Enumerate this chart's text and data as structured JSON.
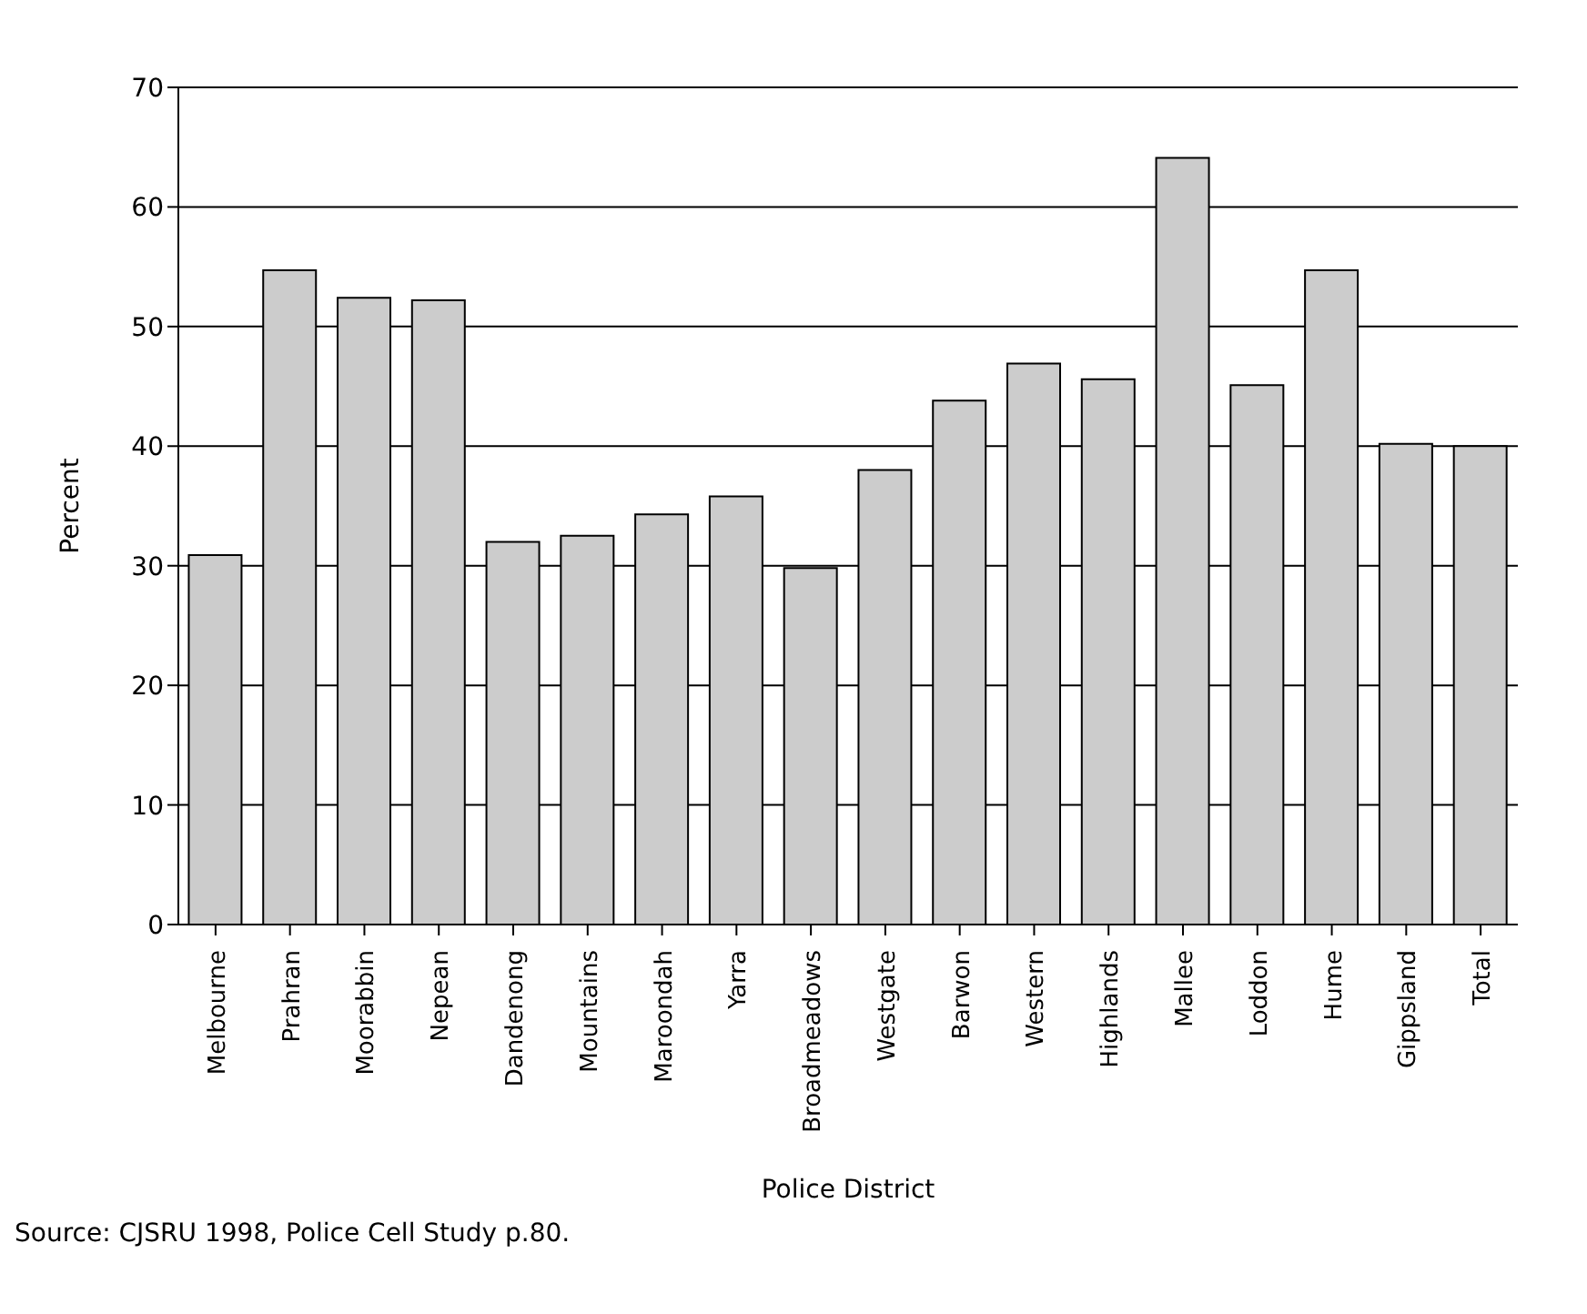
{
  "chart_data": {
    "type": "bar",
    "xlabel": "Police District",
    "ylabel": "Percent",
    "categories": [
      "Melbourne",
      "Prahran",
      "Moorabbin",
      "Nepean",
      "Dandenong",
      "Mountains",
      "Maroondah",
      "Yarra",
      "Broadmeadows",
      "Westgate",
      "Barwon",
      "Western",
      "Highlands",
      "Mallee",
      "Loddon",
      "Hume",
      "Gippsland",
      "Total"
    ],
    "values": [
      30.9,
      54.7,
      52.4,
      52.2,
      32.0,
      32.5,
      34.3,
      35.8,
      29.8,
      38.0,
      43.8,
      46.9,
      45.6,
      64.1,
      45.1,
      54.7,
      40.2,
      40.0
    ],
    "color": "#cccccc",
    "ylim": [
      0,
      70
    ],
    "yticks": [
      0,
      10,
      20,
      30,
      40,
      50,
      60,
      70
    ],
    "grid": "y",
    "annotations": [
      "Source: CJSRU 1998, Police Cell Study p.80."
    ]
  }
}
